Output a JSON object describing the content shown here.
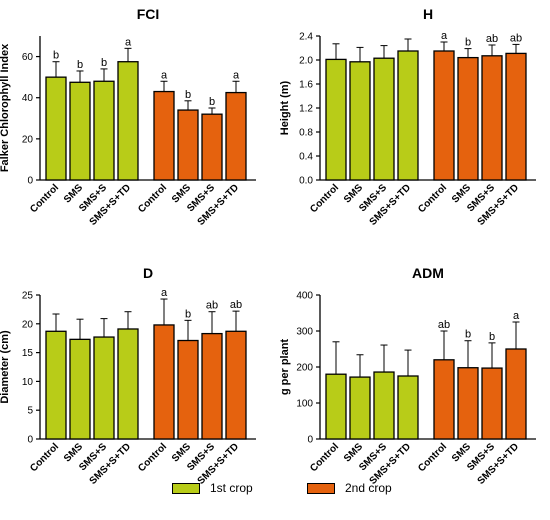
{
  "colors": {
    "first_crop": "#b8cc18",
    "second_crop": "#e5620e"
  },
  "legend": {
    "first_label": "1st crop",
    "second_label": "2nd crop"
  },
  "chart_data": [
    {
      "id": "fci",
      "type": "bar",
      "title": "FCI",
      "ylabel": "Falker  Chlorophyll Index",
      "ylim": [
        0,
        70
      ],
      "yticks": [
        0,
        20,
        40,
        60
      ],
      "categories": [
        "Control",
        "SMS",
        "SMS+S",
        "SMS+S+TD"
      ],
      "series": [
        {
          "name": "1st crop",
          "values": [
            50,
            47.5,
            48,
            57.5
          ],
          "errors": [
            7.5,
            5.5,
            6,
            6.5
          ],
          "letters": [
            "b",
            "b",
            "b",
            "a"
          ]
        },
        {
          "name": "2nd crop",
          "values": [
            43,
            34,
            32,
            42.5
          ],
          "errors": [
            5,
            4.5,
            3,
            5.5
          ],
          "letters": [
            "a",
            "b",
            "b",
            "a"
          ]
        }
      ]
    },
    {
      "id": "height",
      "type": "bar",
      "title": "H",
      "ylabel": "Height (m)",
      "ylim": [
        0,
        2.4
      ],
      "yticks": [
        "0.0",
        "0.4",
        "0.8",
        "1.2",
        "1.6",
        "2.0",
        "2.4"
      ],
      "categories": [
        "Control",
        "SMS",
        "SMS+S",
        "SMS+S+TD"
      ],
      "series": [
        {
          "name": "1st crop",
          "values": [
            2.01,
            1.97,
            2.03,
            2.15
          ],
          "errors": [
            0.26,
            0.24,
            0.21,
            0.2
          ],
          "letters": [
            "",
            "",
            "",
            ""
          ]
        },
        {
          "name": "2nd crop",
          "values": [
            2.15,
            2.04,
            2.07,
            2.11
          ],
          "errors": [
            0.15,
            0.15,
            0.18,
            0.15
          ],
          "letters": [
            "a",
            "b",
            "ab",
            "ab"
          ]
        }
      ]
    },
    {
      "id": "diameter",
      "type": "bar",
      "title": "D",
      "ylabel": "Diameter (cm)",
      "ylim": [
        0,
        25
      ],
      "yticks": [
        0,
        5,
        10,
        15,
        20,
        25
      ],
      "categories": [
        "Control",
        "SMS",
        "SMS+S",
        "SMS+S+TD"
      ],
      "series": [
        {
          "name": "1st crop",
          "values": [
            18.7,
            17.3,
            17.7,
            19.1
          ],
          "errors": [
            3,
            3.5,
            3.2,
            3
          ],
          "letters": [
            "",
            "",
            "",
            ""
          ]
        },
        {
          "name": "2nd crop",
          "values": [
            19.8,
            17.1,
            18.3,
            18.7
          ],
          "errors": [
            4.5,
            3.5,
            3.8,
            3.5
          ],
          "letters": [
            "a",
            "b",
            "ab",
            "ab"
          ]
        }
      ]
    },
    {
      "id": "adm",
      "type": "bar",
      "title": "ADM",
      "ylabel": "g per plant",
      "ylim": [
        0,
        400
      ],
      "yticks": [
        0,
        100,
        200,
        300,
        400
      ],
      "categories": [
        "Control",
        "SMS",
        "SMS+S",
        "SMS+S+TD"
      ],
      "series": [
        {
          "name": "1st crop",
          "values": [
            180,
            172,
            186,
            175
          ],
          "errors": [
            90,
            62,
            75,
            72
          ],
          "letters": [
            "",
            "",
            "",
            ""
          ]
        },
        {
          "name": "2nd crop",
          "values": [
            220,
            198,
            197,
            250
          ],
          "errors": [
            80,
            75,
            70,
            75
          ],
          "letters": [
            "ab",
            "b",
            "b",
            "a"
          ]
        }
      ]
    }
  ]
}
